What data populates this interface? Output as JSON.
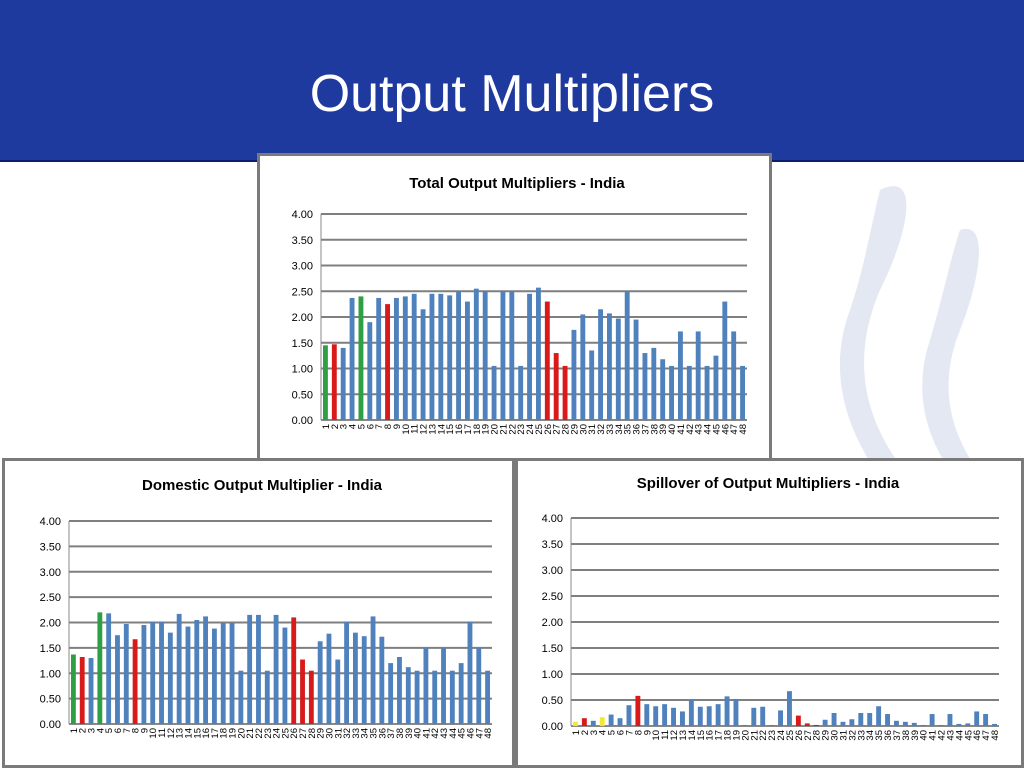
{
  "slide": {
    "title": "Output Multipliers"
  },
  "colors": {
    "header": "#1f3a9f",
    "bar": "#4f81bd",
    "green": "#2ea043",
    "red": "#d91a1a",
    "yellow": "#f2ea2e"
  },
  "chart_data": [
    {
      "id": "total",
      "type": "bar",
      "title": "Total Output Multipliers - India",
      "ylim": [
        0,
        4
      ],
      "yticks": [
        "0.00",
        "0.50",
        "1.00",
        "1.50",
        "2.00",
        "2.50",
        "3.00",
        "3.50",
        "4.00"
      ],
      "grid": true,
      "categories": [
        "1",
        "2",
        "3",
        "4",
        "5",
        "6",
        "7",
        "8",
        "9",
        "10",
        "11",
        "12",
        "13",
        "14",
        "15",
        "16",
        "17",
        "18",
        "19",
        "20",
        "21",
        "22",
        "23",
        "24",
        "25",
        "26",
        "27",
        "28",
        "29",
        "30",
        "31",
        "32",
        "33",
        "34",
        "35",
        "36",
        "37",
        "38",
        "39",
        "40",
        "41",
        "42",
        "43",
        "44",
        "45",
        "46",
        "47",
        "48"
      ],
      "values": [
        1.45,
        1.47,
        1.4,
        2.37,
        2.4,
        1.9,
        2.37,
        2.25,
        2.37,
        2.4,
        2.45,
        2.15,
        2.45,
        2.45,
        2.42,
        2.5,
        2.3,
        2.55,
        2.5,
        1.05,
        2.5,
        2.5,
        1.05,
        2.45,
        2.57,
        2.3,
        1.3,
        1.05,
        1.75,
        2.05,
        1.35,
        2.15,
        2.07,
        1.97,
        2.5,
        1.95,
        1.3,
        1.4,
        1.18,
        1.05,
        1.72,
        1.05,
        1.72,
        1.05,
        1.25,
        2.3,
        1.72,
        1.05
      ],
      "bar_colors": [
        "green",
        "red",
        "bar",
        "bar",
        "green",
        "bar",
        "bar",
        "red",
        "bar",
        "bar",
        "bar",
        "bar",
        "bar",
        "bar",
        "bar",
        "bar",
        "bar",
        "bar",
        "bar",
        "bar",
        "bar",
        "bar",
        "bar",
        "bar",
        "bar",
        "red",
        "red",
        "red",
        "bar",
        "bar",
        "bar",
        "bar",
        "bar",
        "bar",
        "bar",
        "bar",
        "bar",
        "bar",
        "bar",
        "bar",
        "bar",
        "bar",
        "bar",
        "bar",
        "bar",
        "bar",
        "bar",
        "bar"
      ]
    },
    {
      "id": "domestic",
      "type": "bar",
      "title": "Domestic Output Multiplier - India",
      "ylim": [
        0,
        4
      ],
      "yticks": [
        "0.00",
        "0.50",
        "1.00",
        "1.50",
        "2.00",
        "2.50",
        "3.00",
        "3.50",
        "4.00"
      ],
      "grid": true,
      "categories": [
        "1",
        "2",
        "3",
        "4",
        "5",
        "6",
        "7",
        "8",
        "9",
        "10",
        "11",
        "12",
        "13",
        "14",
        "15",
        "16",
        "17",
        "18",
        "19",
        "20",
        "21",
        "22",
        "23",
        "24",
        "25",
        "26",
        "27",
        "28",
        "29",
        "30",
        "31",
        "32",
        "33",
        "34",
        "35",
        "36",
        "37",
        "38",
        "39",
        "40",
        "41",
        "42",
        "43",
        "44",
        "45",
        "46",
        "47",
        "48"
      ],
      "values": [
        1.37,
        1.32,
        1.3,
        2.2,
        2.18,
        1.75,
        1.97,
        1.67,
        1.95,
        2.02,
        2.02,
        1.8,
        2.17,
        1.92,
        2.05,
        2.12,
        1.88,
        1.99,
        1.99,
        1.05,
        2.15,
        2.15,
        1.05,
        2.15,
        1.9,
        2.1,
        1.27,
        1.05,
        1.63,
        1.78,
        1.27,
        2.02,
        1.8,
        1.73,
        2.12,
        1.72,
        1.2,
        1.32,
        1.12,
        1.05,
        1.5,
        1.05,
        1.5,
        1.05,
        1.2,
        2.02,
        1.5,
        1.05
      ],
      "bar_colors": [
        "green",
        "red",
        "bar",
        "green",
        "bar",
        "bar",
        "bar",
        "red",
        "bar",
        "bar",
        "bar",
        "bar",
        "bar",
        "bar",
        "bar",
        "bar",
        "bar",
        "bar",
        "bar",
        "bar",
        "bar",
        "bar",
        "bar",
        "bar",
        "bar",
        "red",
        "red",
        "red",
        "bar",
        "bar",
        "bar",
        "bar",
        "bar",
        "bar",
        "bar",
        "bar",
        "bar",
        "bar",
        "bar",
        "bar",
        "bar",
        "bar",
        "bar",
        "bar",
        "bar",
        "bar",
        "bar",
        "bar"
      ]
    },
    {
      "id": "spillover",
      "type": "bar",
      "title": "Spillover of Output Multipliers - India",
      "ylim": [
        0,
        4
      ],
      "yticks": [
        "0.00",
        "0.50",
        "1.00",
        "1.50",
        "2.00",
        "2.50",
        "3.00",
        "3.50",
        "4.00"
      ],
      "grid": true,
      "categories": [
        "1",
        "2",
        "3",
        "4",
        "5",
        "6",
        "7",
        "8",
        "9",
        "10",
        "11",
        "12",
        "13",
        "14",
        "15",
        "16",
        "17",
        "18",
        "19",
        "20",
        "21",
        "22",
        "23",
        "24",
        "25",
        "26",
        "27",
        "28",
        "29",
        "30",
        "31",
        "32",
        "33",
        "34",
        "35",
        "36",
        "37",
        "38",
        "39",
        "40",
        "41",
        "42",
        "43",
        "44",
        "45",
        "46",
        "47",
        "48"
      ],
      "values": [
        0.08,
        0.15,
        0.1,
        0.17,
        0.22,
        0.15,
        0.4,
        0.58,
        0.42,
        0.38,
        0.42,
        0.35,
        0.28,
        0.5,
        0.37,
        0.38,
        0.42,
        0.57,
        0.52,
        0.02,
        0.35,
        0.37,
        0.02,
        0.3,
        0.67,
        0.2,
        0.05,
        0.02,
        0.12,
        0.25,
        0.08,
        0.13,
        0.25,
        0.25,
        0.38,
        0.23,
        0.1,
        0.08,
        0.06,
        0.02,
        0.23,
        0.02,
        0.23,
        0.04,
        0.05,
        0.28,
        0.23,
        0.04
      ],
      "bar_colors": [
        "yellow",
        "red",
        "bar",
        "yellow",
        "bar",
        "bar",
        "bar",
        "red",
        "bar",
        "bar",
        "bar",
        "bar",
        "bar",
        "bar",
        "bar",
        "bar",
        "bar",
        "bar",
        "bar",
        "bar",
        "bar",
        "bar",
        "bar",
        "bar",
        "bar",
        "red",
        "red",
        "red",
        "bar",
        "bar",
        "bar",
        "bar",
        "bar",
        "bar",
        "bar",
        "bar",
        "bar",
        "bar",
        "bar",
        "bar",
        "bar",
        "bar",
        "bar",
        "bar",
        "bar",
        "bar",
        "bar",
        "bar"
      ]
    }
  ]
}
